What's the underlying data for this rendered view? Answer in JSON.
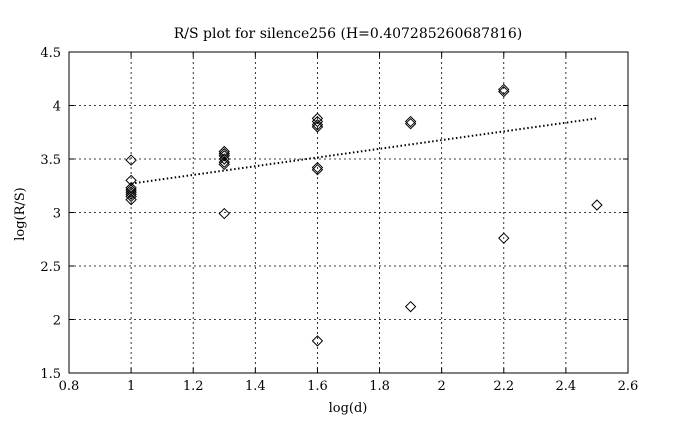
{
  "chart_data": {
    "type": "scatter",
    "title": "R/S plot for silence256 (H=0.407285260687816)",
    "xlabel": "log(d)",
    "ylabel": "log(R/S)",
    "xlim": [
      0.8,
      2.6
    ],
    "ylim": [
      1.5,
      4.5
    ],
    "xticks": [
      "0.8",
      "1",
      "1.2",
      "1.4",
      "1.6",
      "1.8",
      "2",
      "2.2",
      "2.4",
      "2.6"
    ],
    "yticks": [
      "1.5",
      "2",
      "2.5",
      "3",
      "3.5",
      "4",
      "4.5"
    ],
    "grid": true,
    "marker": "diamond",
    "points": [
      {
        "x": 1.0,
        "y": 3.49
      },
      {
        "x": 1.0,
        "y": 3.3
      },
      {
        "x": 1.0,
        "y": 3.23
      },
      {
        "x": 1.0,
        "y": 3.21
      },
      {
        "x": 1.0,
        "y": 3.19
      },
      {
        "x": 1.0,
        "y": 3.17
      },
      {
        "x": 1.0,
        "y": 3.15
      },
      {
        "x": 1.0,
        "y": 3.12
      },
      {
        "x": 1.3,
        "y": 3.57
      },
      {
        "x": 1.3,
        "y": 3.55
      },
      {
        "x": 1.3,
        "y": 3.53
      },
      {
        "x": 1.3,
        "y": 3.5
      },
      {
        "x": 1.3,
        "y": 3.47
      },
      {
        "x": 1.3,
        "y": 3.45
      },
      {
        "x": 1.3,
        "y": 2.99
      },
      {
        "x": 1.6,
        "y": 3.88
      },
      {
        "x": 1.6,
        "y": 3.85
      },
      {
        "x": 1.6,
        "y": 3.82
      },
      {
        "x": 1.6,
        "y": 3.8
      },
      {
        "x": 1.6,
        "y": 3.42
      },
      {
        "x": 1.6,
        "y": 3.4
      },
      {
        "x": 1.6,
        "y": 1.8
      },
      {
        "x": 1.9,
        "y": 3.85
      },
      {
        "x": 1.9,
        "y": 3.83
      },
      {
        "x": 1.9,
        "y": 2.12
      },
      {
        "x": 2.2,
        "y": 4.15
      },
      {
        "x": 2.2,
        "y": 4.13
      },
      {
        "x": 2.2,
        "y": 2.76
      },
      {
        "x": 2.5,
        "y": 3.07
      }
    ],
    "fit_line": {
      "x": [
        1.0,
        2.5
      ],
      "y": [
        3.27,
        3.88
      ],
      "style": "dotted"
    }
  }
}
